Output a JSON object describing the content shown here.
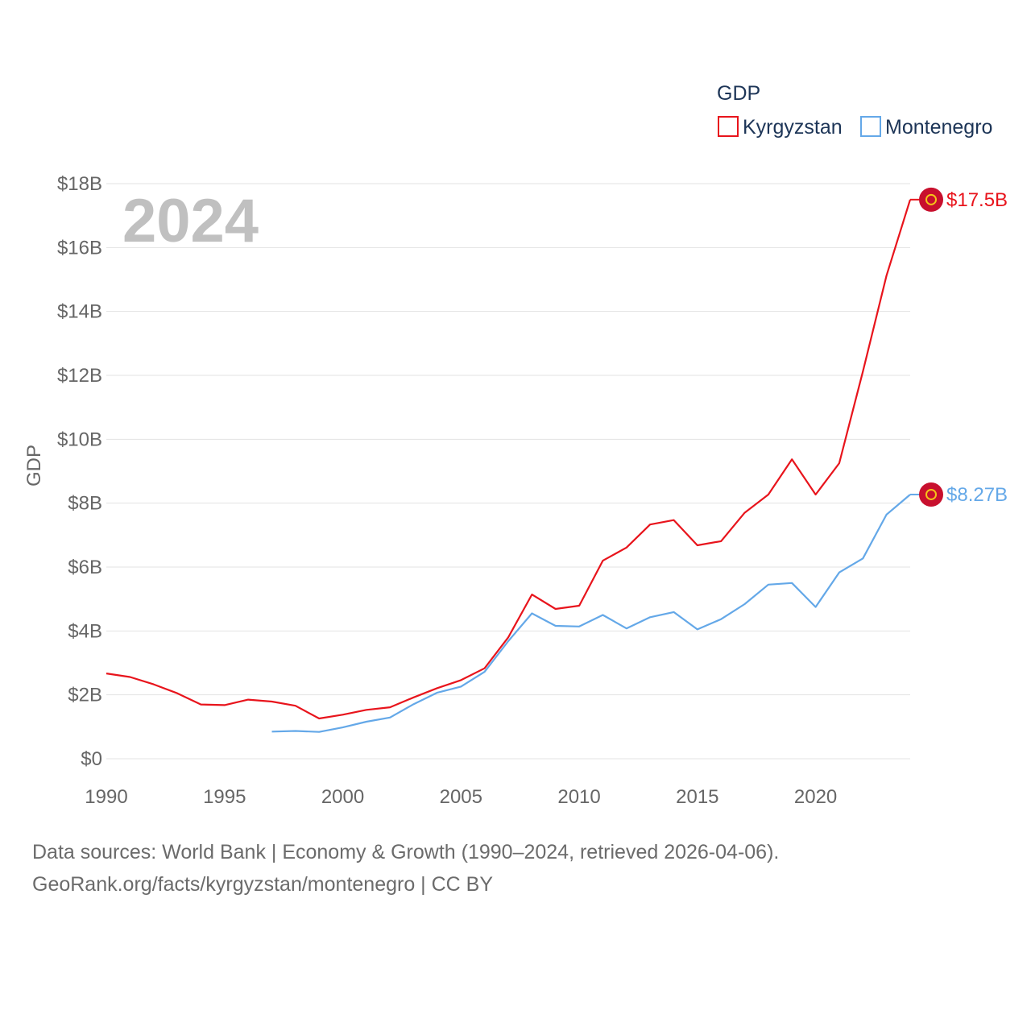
{
  "chart_data": {
    "type": "line",
    "legend_title": "GDP",
    "ylabel": "GDP",
    "year_label": "2024",
    "xlim": [
      1990,
      2024
    ],
    "ylim": [
      0,
      18
    ],
    "x_ticks": [
      1990,
      1995,
      2000,
      2005,
      2010,
      2015,
      2020
    ],
    "x_tick_labels": [
      "1990",
      "1995",
      "2000",
      "2005",
      "2010",
      "2015",
      "2020"
    ],
    "y_ticks": [
      0,
      2,
      4,
      6,
      8,
      10,
      12,
      14,
      16,
      18
    ],
    "y_tick_labels": [
      "$0",
      "$2B",
      "$4B",
      "$6B",
      "$8B",
      "$10B",
      "$12B",
      "$14B",
      "$16B",
      "$18B"
    ],
    "grid": true,
    "legend_position": "top-right",
    "series": [
      {
        "name": "Kyrgyzstan",
        "color": "#e8141c",
        "end_label": "$17.5B",
        "x": [
          1990,
          1991,
          1992,
          1993,
          1994,
          1995,
          1996,
          1997,
          1998,
          1999,
          2000,
          2001,
          2002,
          2003,
          2004,
          2005,
          2006,
          2007,
          2008,
          2009,
          2010,
          2011,
          2012,
          2013,
          2014,
          2015,
          2016,
          2017,
          2018,
          2019,
          2020,
          2021,
          2022,
          2023,
          2024
        ],
        "values": [
          2.67,
          2.56,
          2.33,
          2.05,
          1.7,
          1.68,
          1.85,
          1.79,
          1.66,
          1.26,
          1.38,
          1.53,
          1.61,
          1.92,
          2.21,
          2.46,
          2.83,
          3.8,
          5.14,
          4.69,
          4.79,
          6.2,
          6.61,
          7.33,
          7.47,
          6.68,
          6.81,
          7.7,
          8.27,
          9.37,
          8.27,
          9.25,
          12.12,
          15.12,
          17.5
        ]
      },
      {
        "name": "Montenegro",
        "color": "#64a8e8",
        "end_label": "$8.27B",
        "x": [
          1997,
          1998,
          1999,
          2000,
          2001,
          2002,
          2003,
          2004,
          2005,
          2006,
          2007,
          2008,
          2009,
          2010,
          2011,
          2012,
          2013,
          2014,
          2015,
          2016,
          2017,
          2018,
          2019,
          2020,
          2021,
          2022,
          2023,
          2024
        ],
        "values": [
          0.85,
          0.87,
          0.84,
          0.98,
          1.16,
          1.29,
          1.71,
          2.07,
          2.26,
          2.72,
          3.68,
          4.55,
          4.16,
          4.14,
          4.5,
          4.08,
          4.43,
          4.59,
          4.05,
          4.37,
          4.84,
          5.45,
          5.5,
          4.75,
          5.83,
          6.27,
          7.64,
          8.27
        ]
      }
    ]
  },
  "caption": {
    "line1": "Data sources: World Bank | Economy & Growth (1990–2024, retrieved 2026-04-06).",
    "line2": "GeoRank.org/facts/kyrgyzstan/montenegro | CC BY"
  }
}
